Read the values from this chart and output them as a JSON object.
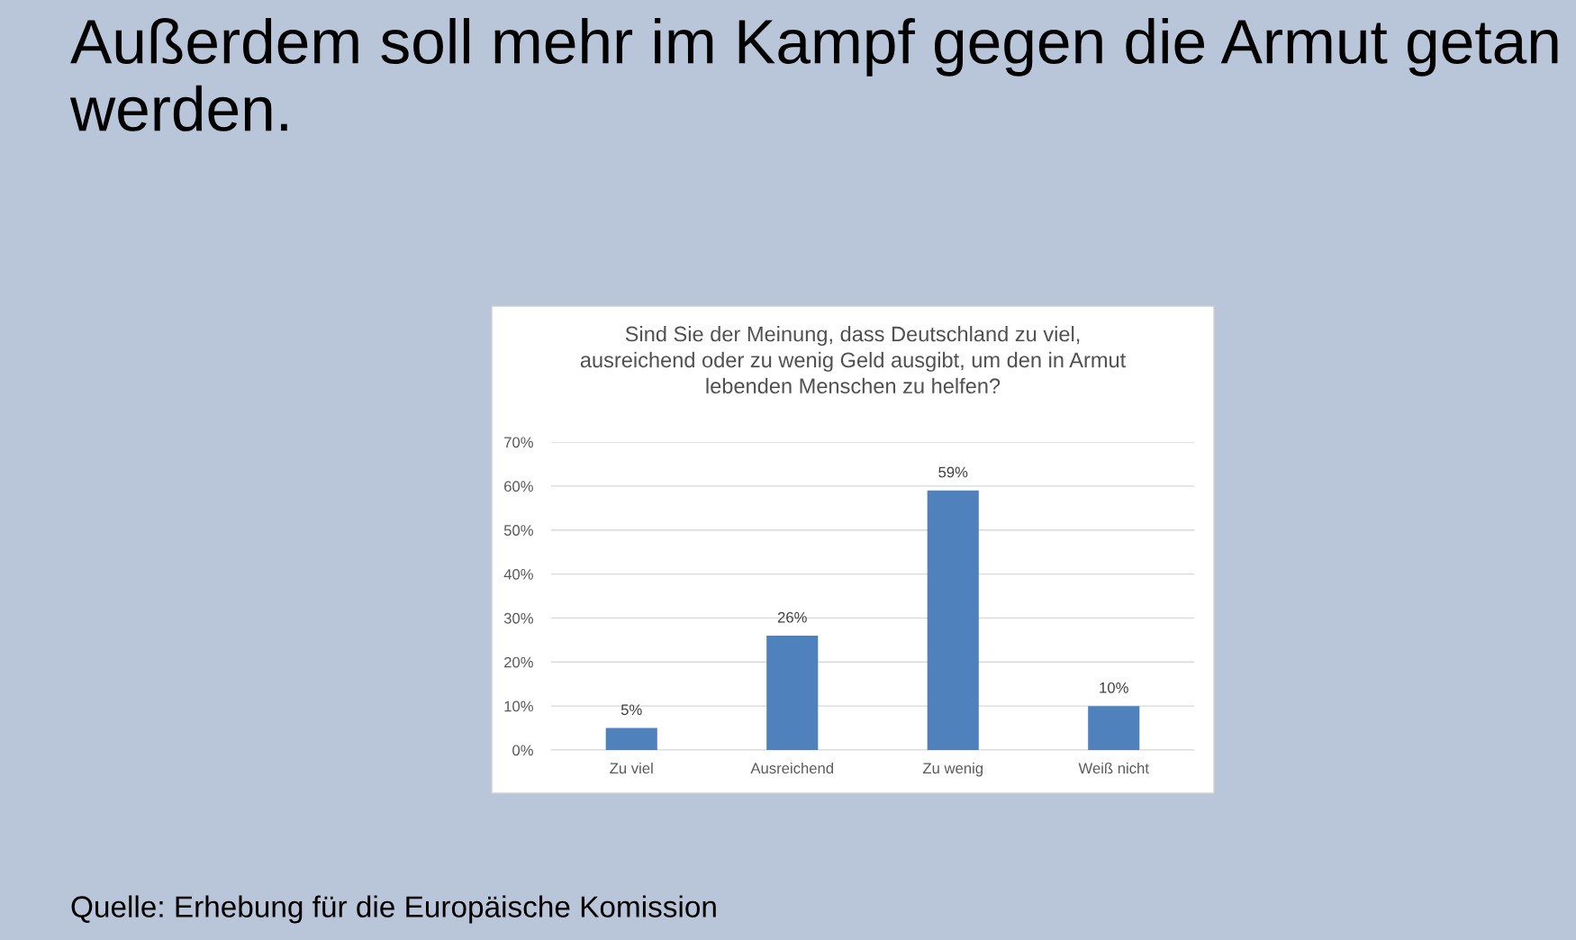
{
  "chart_data": {
    "type": "bar",
    "title": "Außerdem soll mehr im Kampf gegen die Armut getan werden.",
    "subtitle": "Sind Sie der Meinung, dass Deutschland zu viel, ausreichend oder zu wenig Geld ausgibt, um den in Armut lebenden Menschen zu helfen?",
    "categories": [
      "Zu viel",
      "Ausreichend",
      "Zu wenig",
      "Weiß nicht"
    ],
    "values": [
      5,
      26,
      59,
      10
    ],
    "color": "#4f81bd",
    "ylim": [
      0,
      70
    ],
    "yticks": [
      {
        "value": 0,
        "label": "0%"
      },
      {
        "value": 10,
        "label": "10%"
      },
      {
        "value": 20,
        "label": "20%"
      },
      {
        "value": 30,
        "label": "30%"
      },
      {
        "value": 40,
        "label": "40%"
      },
      {
        "value": 50,
        "label": "50%"
      },
      {
        "value": 60,
        "label": "60%"
      },
      {
        "value": 70,
        "label": "70%"
      }
    ],
    "value_labels": [
      "5%",
      "26%",
      "59%",
      "10%"
    ],
    "grid": "y",
    "annotations": [
      "Quelle: Erhebung für die Europäische Komission"
    ]
  }
}
